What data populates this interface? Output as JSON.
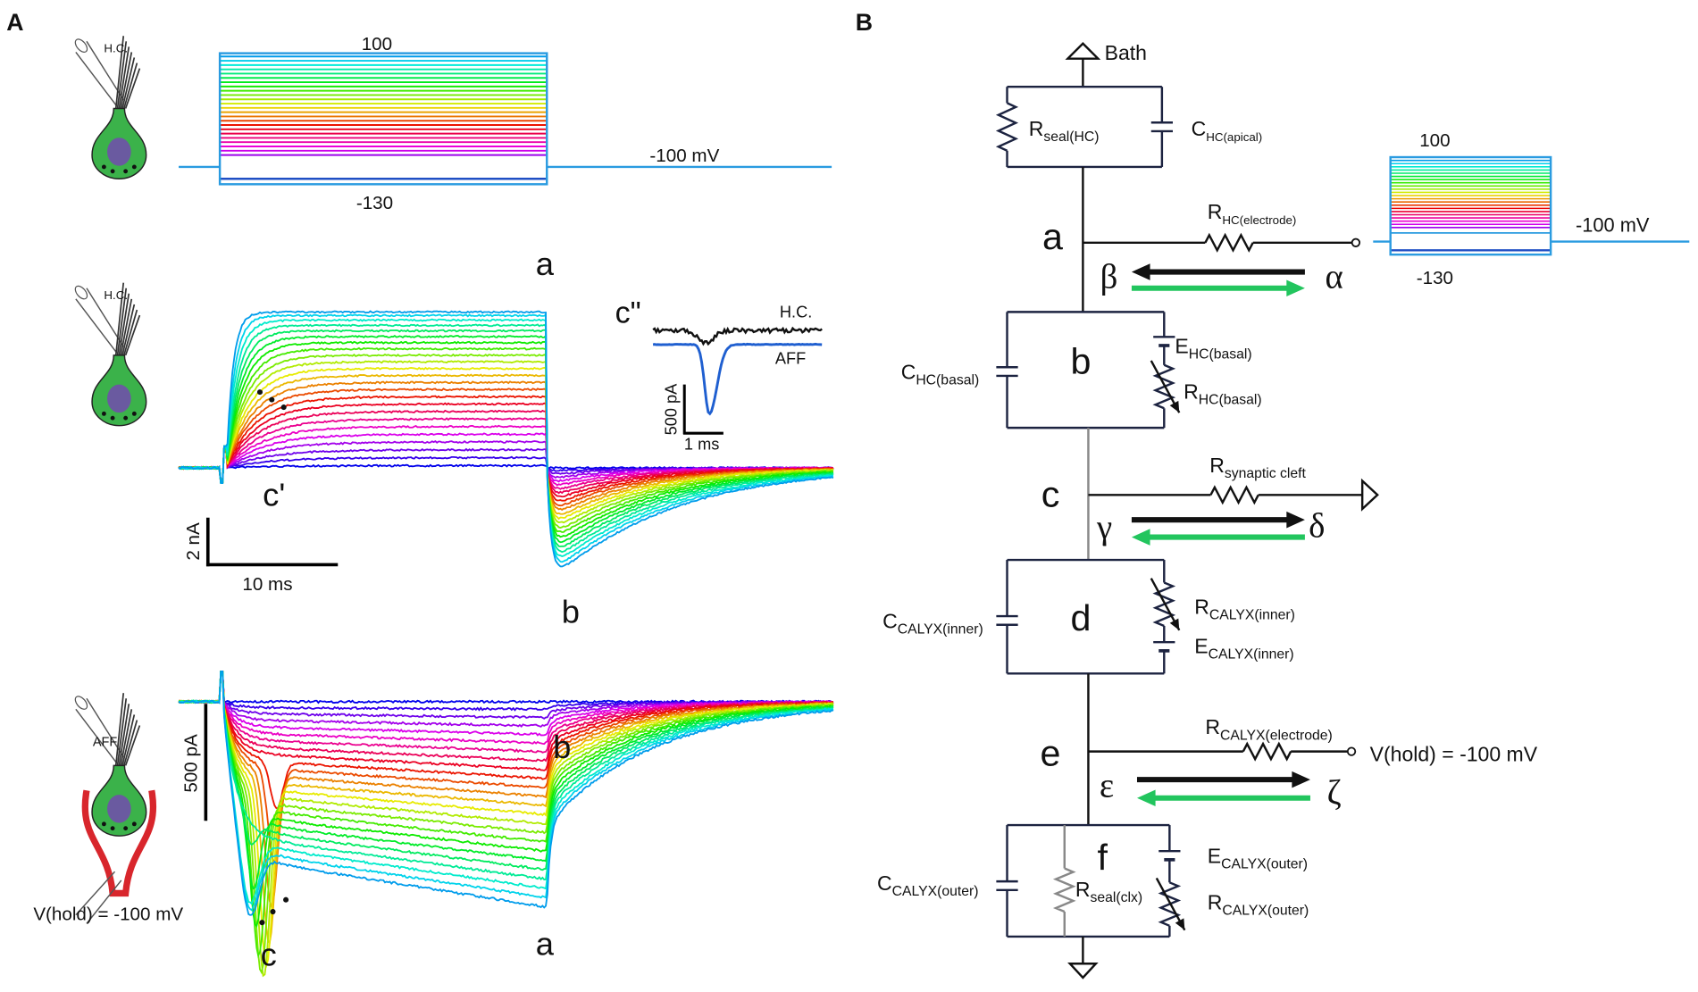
{
  "panel_a": {
    "label": "A",
    "protocol": {
      "cell": "H.C.",
      "step_top": "100",
      "holding": "-100 mV",
      "step_bottom": "-130"
    },
    "hair_cell_current": {
      "cell": "H.C.",
      "peak": "a",
      "tail": "b",
      "onset": "c'",
      "scale_current": "2 nA",
      "scale_time": "10 ms",
      "inset": {
        "label": "c\"",
        "trace_top": "H.C.",
        "trace_bottom": "AFF",
        "scale_current": "500 pA",
        "scale_time": "1 ms"
      }
    },
    "afferent_current": {
      "cell": "AFF",
      "holding": "V(hold) = -100 mV",
      "scale_current": "500 pA",
      "tail": "b",
      "onset": "c",
      "sustained": "a"
    }
  },
  "panel_b": {
    "label": "B",
    "bath": "Bath",
    "nodes": [
      "a",
      "b",
      "c",
      "d",
      "e",
      "f"
    ],
    "currents": [
      "β",
      "α",
      "γ",
      "δ",
      "ε",
      "ζ"
    ],
    "components": {
      "r_seal_hc": {
        "main": "R",
        "sub": "seal(HC)"
      },
      "c_hc_apical": {
        "main": "C",
        "sub": "HC(apical)"
      },
      "r_hc_electrode": {
        "main": "R",
        "sub": "HC(electrode)"
      },
      "c_hc_basal": {
        "main": "C",
        "sub": "HC(basal)"
      },
      "e_hc_basal": {
        "main": "E",
        "sub": "HC(basal)"
      },
      "r_hc_basal": {
        "main": "R",
        "sub": "HC(basal)"
      },
      "r_synaptic_cleft": {
        "main": "R",
        "sub": "synaptic cleft"
      },
      "c_calyx_inner": {
        "main": "C",
        "sub": "CALYX(inner)"
      },
      "r_calyx_inner": {
        "main": "R",
        "sub": "CALYX(inner)"
      },
      "e_calyx_inner": {
        "main": "E",
        "sub": "CALYX(inner)"
      },
      "r_calyx_electrode": {
        "main": "R",
        "sub": "CALYX(electrode)"
      },
      "c_calyx_outer": {
        "main": "C",
        "sub": "CALYX(outer)"
      },
      "r_seal_clx": {
        "main": "R",
        "sub": "seal(clx)"
      },
      "e_calyx_outer": {
        "main": "E",
        "sub": "CALYX(outer)"
      },
      "r_calyx_outer": {
        "main": "R",
        "sub": "CALYX(outer)"
      }
    },
    "holding": "V(hold) = -100 mV",
    "protocol": {
      "step_top": "100",
      "holding": "-100 mV",
      "step_bottom": "-130"
    }
  }
}
